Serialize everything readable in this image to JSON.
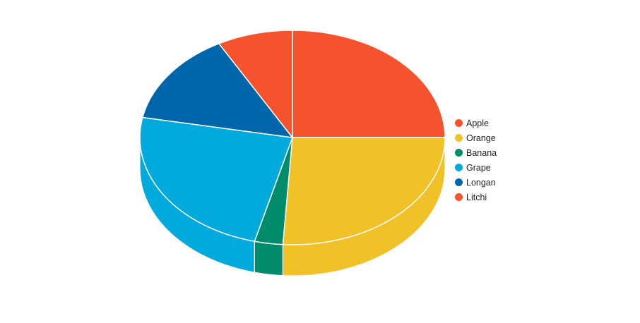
{
  "chart_data": {
    "type": "pie",
    "title": "",
    "categories": [
      "Apple",
      "Orange",
      "Banana",
      "Grape",
      "Longan",
      "Litchi"
    ],
    "values": [
      25,
      26,
      3,
      24,
      14,
      8
    ],
    "colors": [
      "#f5532d",
      "#f0c228",
      "#008c6a",
      "#00aadc",
      "#0066ac",
      "#f5532d"
    ],
    "three_d": true,
    "legend_position": "right"
  }
}
